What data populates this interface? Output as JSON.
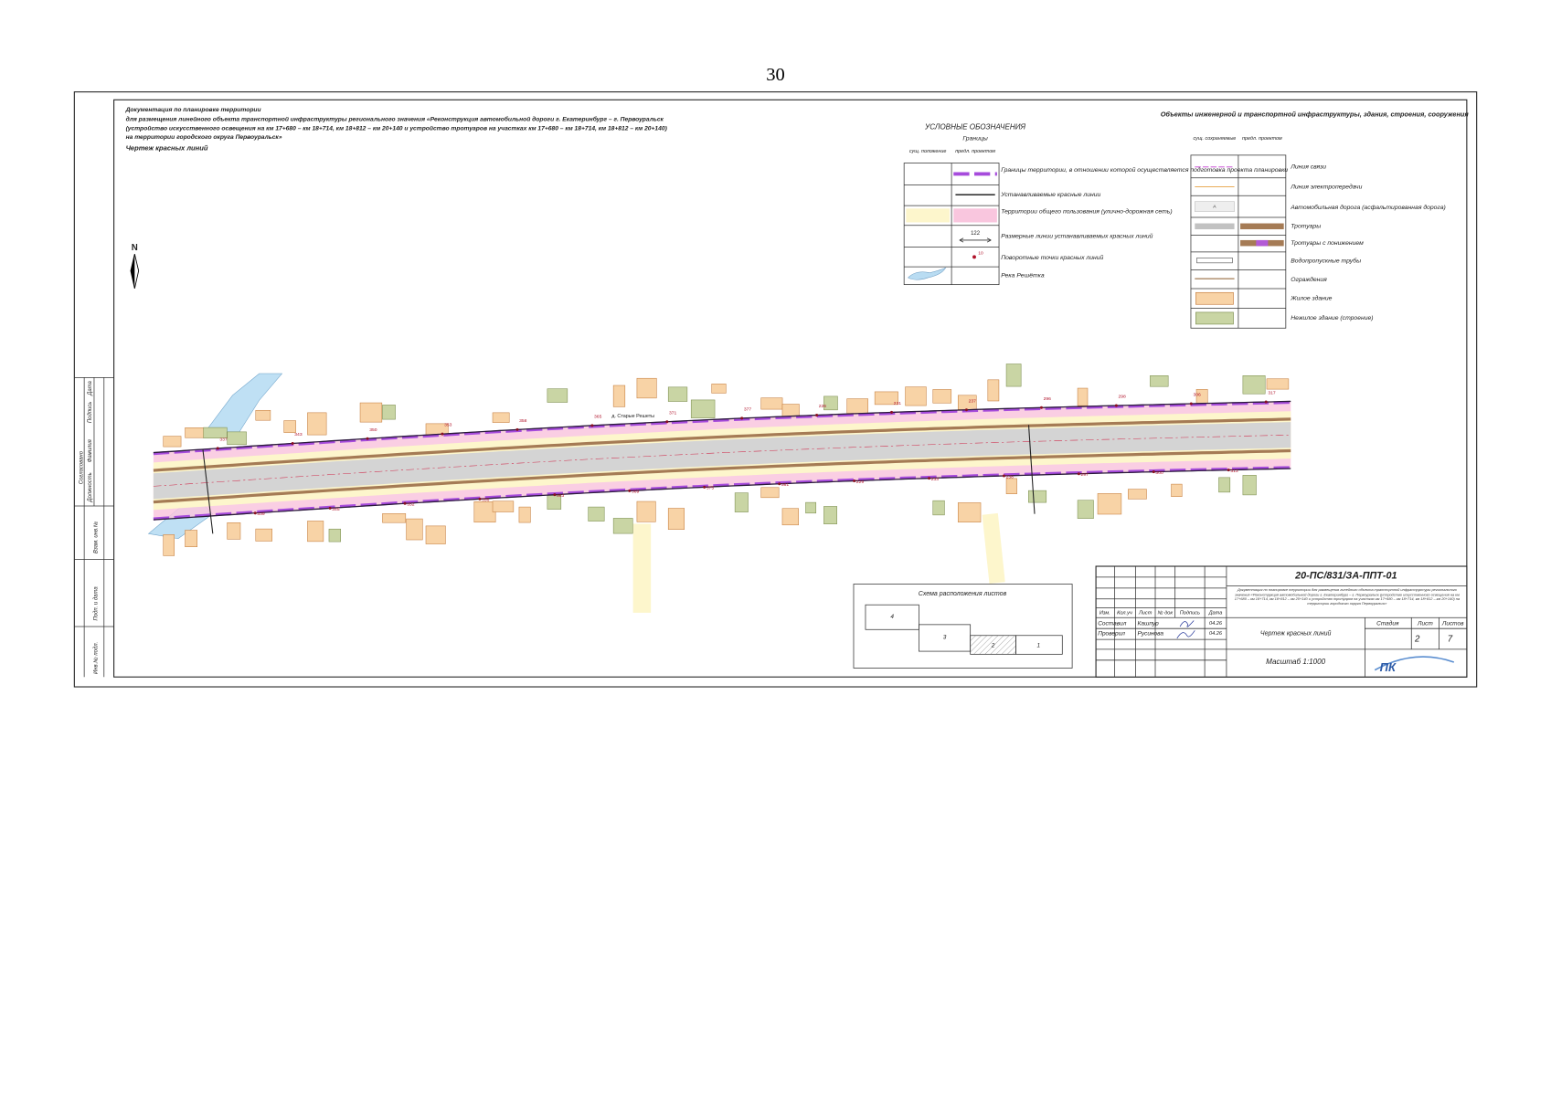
{
  "page_number": "30",
  "header": {
    "lines": [
      "Документация по планировке территории",
      "для размещения линейного объекта транспортной инфраструктуры регионального значения «Реконструкция автомобильной дороги г. Екатеринбург – г. Первоуральск",
      "(устройство искусственного освещения на км 17+680 – км 18+714, км 18+812 – км 20+140 и устройство тротуаров на участках км 17+680 – км 18+714, км 18+812 – км 20+140)",
      "на территории городского округа Первоуральск»"
    ],
    "subtitle": "Чертеж красных линий"
  },
  "north": "N",
  "legend_borders": {
    "title": "УСЛОВНЫЕ ОБОЗНАЧЕНИЯ",
    "subtitle": "Границы",
    "columns": [
      "сущ. положение",
      "предл. проектом"
    ],
    "items": [
      "Границы территории, в отношении которой осуществляется подготовка проекта планировки",
      "Устанавливаемые красные линии",
      "Территории общего пользования (улично-дорожная сеть)",
      "Размерные линии устанавливаемых красных линий",
      "Поворотные точки красных линий",
      "Река Решётка"
    ],
    "dimension_sample": "122",
    "point_sample": "10"
  },
  "legend_objects": {
    "title": "Объекты инженерной и транспортной инфраструктуры, здания, строения, сооружения",
    "columns": [
      "сущ. сохраняемые",
      "предл. проектом"
    ],
    "items": [
      "Линия связи",
      "Линия электропередачи",
      "Автомобильная дорога (асфальтированная дорога)",
      "Тротуары",
      "Тротуары с понижением",
      "Водопропускные трубы",
      "Ограждения",
      "Жилое здание",
      "Нежилое здание (строение)"
    ],
    "road_sample": "А"
  },
  "side_stamp": [
    "Согласовано",
    "Должность",
    "Фамилия",
    "Подпись",
    "Дата",
    "Взам. инв.№",
    "Подп. и дата",
    "Инв.№ подл."
  ],
  "map": {
    "village": "д. Старые Решеты",
    "points": [
      "337",
      "339",
      "343",
      "345",
      "350",
      "352",
      "353",
      "356",
      "358",
      "363",
      "365",
      "369",
      "371",
      "375",
      "377",
      "381",
      "226",
      "229",
      "231",
      "233",
      "237",
      "238",
      "296",
      "297",
      "298",
      "300",
      "306",
      "313",
      "317"
    ]
  },
  "scheme": {
    "title": "Схема расположения листов",
    "sheets": [
      "4",
      "3",
      "2",
      "1"
    ]
  },
  "title_block": {
    "code": "20-ПС/831/ЗА-ППТ-01",
    "description": "Документация по планировке территории для размещения линейного объекта транспортной инфраструктуры регионального значения «Реконструкция автомобильной дороги г. Екатеринбург – г. Первоуральск (устройство искусственного освещения на км 17+680 – км 18+714, км 18+812 – км 20+140 и устройство тротуаров на участках км 17+680 – км 18+714, км 18+812 – км 20+140) на территории городского округа Первоуральск»",
    "headers": [
      "Изм.",
      "Кол.уч",
      "Лист",
      "№ док",
      "Подпись",
      "Дата"
    ],
    "rows": [
      [
        "Составил",
        "Кашпур",
        "04.26"
      ],
      [
        "Проверил",
        "Русинова",
        "04.26"
      ]
    ],
    "drawing_title": "Чертеж красных линий",
    "stage_headers": [
      "Стадия",
      "Лист",
      "Листов"
    ],
    "sheet": "2",
    "sheets": "7",
    "scale": "Масштаб 1:1000",
    "logo": "ПК"
  }
}
